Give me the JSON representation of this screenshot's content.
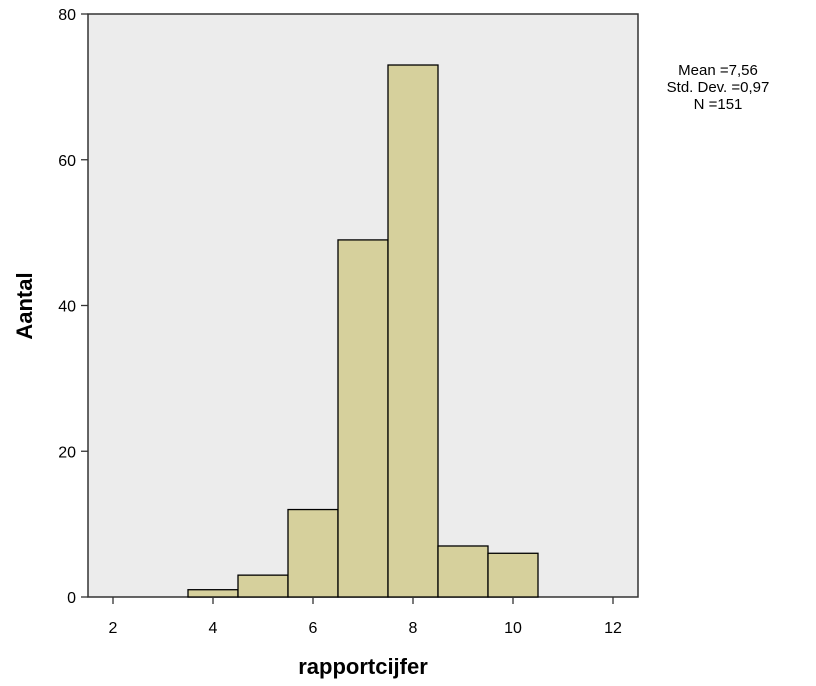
{
  "chart_data": {
    "type": "bar",
    "subtype": "histogram",
    "xlabel": "rapportcijfer",
    "ylabel": "Aantal",
    "xlim": [
      1.5,
      12.5
    ],
    "ylim": [
      0,
      80
    ],
    "xticks": [
      2,
      4,
      6,
      8,
      10,
      12
    ],
    "yticks": [
      0,
      20,
      40,
      60,
      80
    ],
    "bins": [
      {
        "start": 3.5,
        "end": 4.5,
        "count": 1
      },
      {
        "start": 4.5,
        "end": 5.5,
        "count": 3
      },
      {
        "start": 5.5,
        "end": 6.5,
        "count": 12
      },
      {
        "start": 6.5,
        "end": 7.5,
        "count": 49
      },
      {
        "start": 7.5,
        "end": 8.5,
        "count": 73
      },
      {
        "start": 8.5,
        "end": 9.5,
        "count": 7
      },
      {
        "start": 9.5,
        "end": 10.5,
        "count": 6
      }
    ],
    "bar_color": "#d6d09c",
    "plot_background": "#ececec",
    "grid": false,
    "legend": "none"
  },
  "stats": {
    "mean": "Mean =7,56",
    "std_dev": "Std. Dev. =0,97",
    "n": "N =151"
  }
}
